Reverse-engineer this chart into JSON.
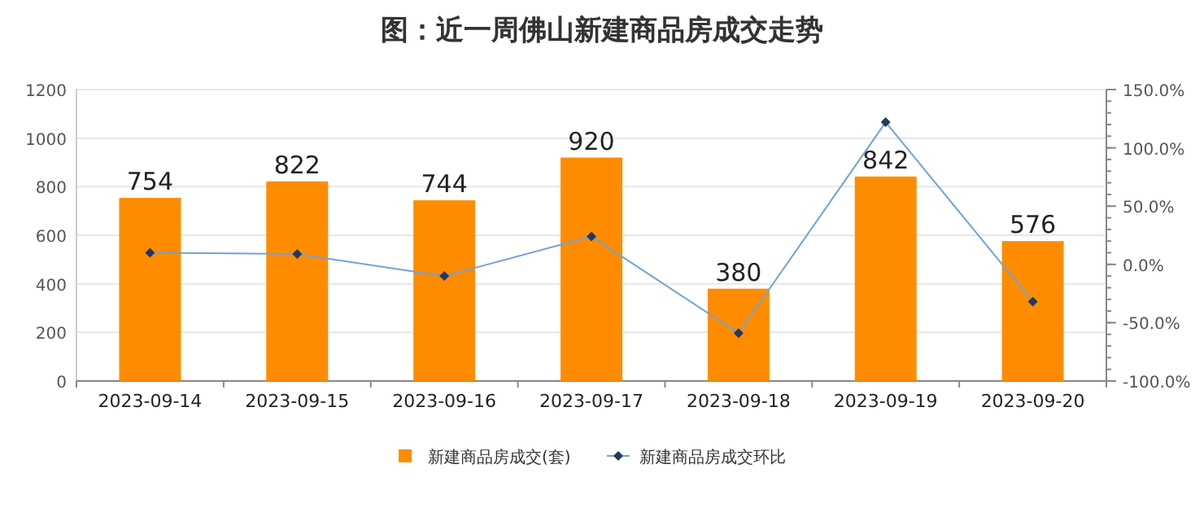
{
  "chart_data": {
    "type": "bar",
    "title": "图：近一周佛山新建商品房成交走势",
    "categories": [
      "2023-09-14",
      "2023-09-15",
      "2023-09-16",
      "2023-09-17",
      "2023-09-18",
      "2023-09-19",
      "2023-09-20"
    ],
    "series": [
      {
        "name": "新建商品房成交(套)",
        "color": "#ff8c00",
        "values": [
          754,
          822,
          744,
          920,
          380,
          842,
          576
        ],
        "value_labels": [
          "754",
          "822",
          "744",
          "920",
          "380",
          "842",
          "576"
        ]
      },
      {
        "name": "新建商品房成交环比",
        "type": "line",
        "axis": "y2",
        "color": "#6fa3d8",
        "marker": "diamond",
        "values": [
          10,
          9,
          -10,
          24,
          -59,
          122,
          -32
        ]
      }
    ],
    "ylim": [
      0,
      1200
    ],
    "yticks": [
      0,
      200,
      400,
      600,
      800,
      1000,
      1200
    ],
    "y2lim": [
      -100,
      150
    ],
    "y2ticks": [
      {
        "value": -100,
        "label": "-100.0%"
      },
      {
        "value": -50,
        "label": "-50.0%"
      },
      {
        "value": 0,
        "label": "0.0%"
      },
      {
        "value": 50,
        "label": "50.0%"
      },
      {
        "value": 100,
        "label": "100.0%"
      },
      {
        "value": 150,
        "label": "150.0%"
      }
    ],
    "grid": "y",
    "legend": "bottom"
  }
}
